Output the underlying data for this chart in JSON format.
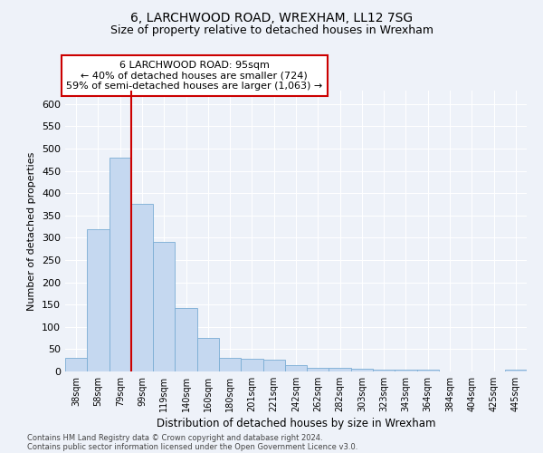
{
  "title1": "6, LARCHWOOD ROAD, WREXHAM, LL12 7SG",
  "title2": "Size of property relative to detached houses in Wrexham",
  "xlabel": "Distribution of detached houses by size in Wrexham",
  "ylabel": "Number of detached properties",
  "categories": [
    "38sqm",
    "58sqm",
    "79sqm",
    "99sqm",
    "119sqm",
    "140sqm",
    "160sqm",
    "180sqm",
    "201sqm",
    "221sqm",
    "242sqm",
    "262sqm",
    "282sqm",
    "303sqm",
    "323sqm",
    "343sqm",
    "364sqm",
    "384sqm",
    "404sqm",
    "425sqm",
    "445sqm"
  ],
  "values": [
    30,
    320,
    480,
    375,
    290,
    143,
    76,
    31,
    28,
    27,
    15,
    8,
    8,
    6,
    5,
    5,
    5,
    0,
    0,
    0,
    5
  ],
  "bar_color": "#c5d8f0",
  "bar_edge_color": "#7aadd4",
  "vline_x": 2.5,
  "vline_color": "#cc0000",
  "annotation_title": "6 LARCHWOOD ROAD: 95sqm",
  "annotation_line1": "← 40% of detached houses are smaller (724)",
  "annotation_line2": "59% of semi-detached houses are larger (1,063) →",
  "annotation_box_color": "#cc0000",
  "ylim": [
    0,
    630
  ],
  "yticks": [
    0,
    50,
    100,
    150,
    200,
    250,
    300,
    350,
    400,
    450,
    500,
    550,
    600
  ],
  "footer1": "Contains HM Land Registry data © Crown copyright and database right 2024.",
  "footer2": "Contains public sector information licensed under the Open Government Licence v3.0.",
  "bg_color": "#eef2f9",
  "grid_color": "#ffffff"
}
